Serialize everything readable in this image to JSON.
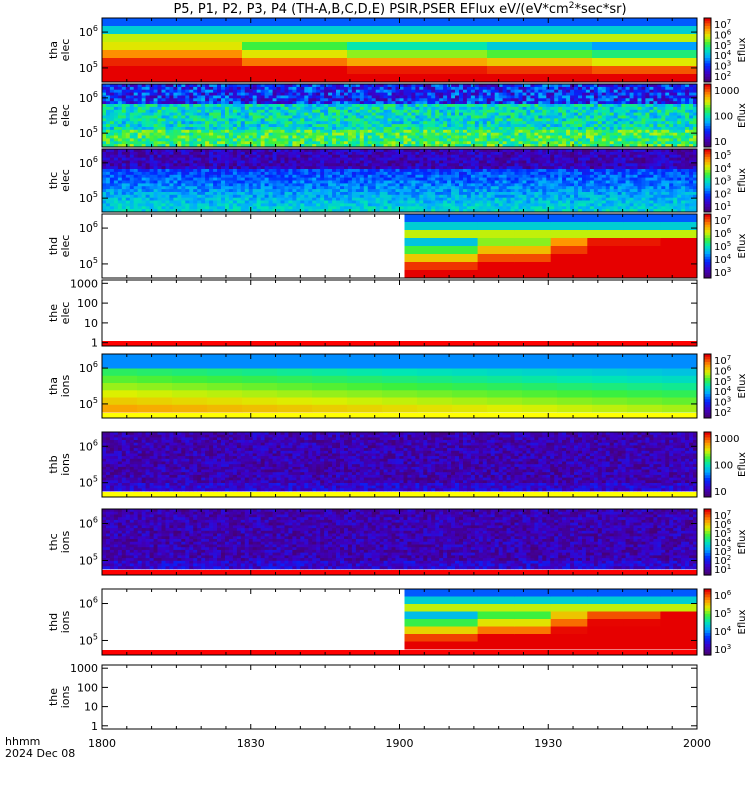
{
  "title": "P5, P1, P2, P3, P4 (TH-A,B,C,D,E) PSIR,PSER EFlux eV/(eV*cm",
  "title_sup": "2",
  "title_end": "*sec*sr)",
  "xaxis": {
    "label_line1": "hhmm",
    "label_line2": "2024 Dec 08",
    "range": [
      0,
      120
    ],
    "ticks": [
      {
        "value": 0,
        "label": "1800"
      },
      {
        "value": 30,
        "label": "1830"
      },
      {
        "value": 60,
        "label": "1900"
      },
      {
        "value": 90,
        "label": "1930"
      },
      {
        "value": 120,
        "label": "2000"
      }
    ]
  },
  "chart_data": [
    {
      "type": "heatmap",
      "name": "tha-elec",
      "ylabel1": "tha",
      "ylabel2": "elec",
      "y_ticks": [
        "10^6",
        "10^5"
      ],
      "cbar_label": "Eflux",
      "cbar_ticks": [
        "10^7",
        "10^6",
        "10^5",
        "10^4",
        "10^3",
        "10^2"
      ],
      "data_start": 0,
      "style": "smooth",
      "hot_frac": 0.55,
      "bands": [
        0.5,
        0.35,
        0.25,
        0.18,
        0.1
      ],
      "bottom_stripe": null
    },
    {
      "type": "heatmap",
      "name": "thb-elec",
      "ylabel1": "thb",
      "ylabel2": "elec",
      "y_ticks": [
        "10^6",
        "10^5"
      ],
      "cbar_label": "Eflux",
      "cbar_ticks": [
        "1000",
        "100",
        "10"
      ],
      "data_start": 0,
      "style": "noisy",
      "hot_frac": 0.2,
      "bands": [
        0.05,
        0.3,
        0.45,
        0.55,
        0.5
      ],
      "bottom_stripe": null
    },
    {
      "type": "heatmap",
      "name": "thc-elec",
      "ylabel1": "thc",
      "ylabel2": "elec",
      "y_ticks": [
        "10^6",
        "10^5"
      ],
      "cbar_label": "Eflux",
      "cbar_ticks": [
        "10^5",
        "10^4",
        "10^3",
        "10^2",
        "10^1"
      ],
      "data_start": 0,
      "style": "noisy",
      "hot_frac": 0.1,
      "bands": [
        0.05,
        0.12,
        0.25,
        0.35,
        0.4
      ],
      "bottom_stripe": null
    },
    {
      "type": "heatmap",
      "name": "thd-elec",
      "ylabel1": "thd",
      "ylabel2": "elec",
      "y_ticks": [
        "10^6",
        "10^5"
      ],
      "cbar_label": "Eflux",
      "cbar_ticks": [
        "10^7",
        "10^6",
        "10^5",
        "10^4",
        "10^3"
      ],
      "data_start": 61,
      "style": "smooth",
      "hot_frac": 0.6,
      "bands": [
        0.15,
        0.4,
        0.6,
        0.75,
        0.9
      ],
      "bottom_stripe": null
    },
    {
      "type": "heatmap",
      "name": "the-elec",
      "ylabel1": "the",
      "ylabel2": "elec",
      "y_ticks": [
        "1000",
        "100",
        "10",
        "1"
      ],
      "cbar_label": "",
      "cbar_ticks": [],
      "data_start": 120,
      "style": "empty",
      "hot_frac": 0,
      "bands": [],
      "bottom_stripe": "red"
    },
    {
      "type": "heatmap",
      "name": "tha-ions",
      "ylabel1": "tha",
      "ylabel2": "ions",
      "y_ticks": [
        "10^6",
        "10^5"
      ],
      "cbar_label": "Eflux",
      "cbar_ticks": [
        "10^7",
        "10^6",
        "10^5",
        "10^4",
        "10^3",
        "10^2"
      ],
      "data_start": 0,
      "style": "smooth",
      "hot_frac": 0.5,
      "bands": [
        0.3,
        0.3,
        0.3,
        0.3,
        0.3
      ],
      "bottom_stripe": "yellow"
    },
    {
      "type": "heatmap",
      "name": "thb-ions",
      "ylabel1": "thb",
      "ylabel2": "ions",
      "y_ticks": [
        "10^6",
        "10^5"
      ],
      "cbar_label": "Eflux",
      "cbar_ticks": [
        "1000",
        "100",
        "10"
      ],
      "data_start": 0,
      "style": "noisy",
      "hot_frac": 0.05,
      "bands": [
        0.1,
        0.1,
        0.1,
        0.1,
        0.1
      ],
      "bottom_stripe": "yellow"
    },
    {
      "type": "heatmap",
      "name": "thc-ions",
      "ylabel1": "thc",
      "ylabel2": "ions",
      "y_ticks": [
        "10^6",
        "10^5"
      ],
      "cbar_label": "Eflux",
      "cbar_ticks": [
        "10^7",
        "10^6",
        "10^5",
        "10^4",
        "10^3",
        "10^2",
        "10^1"
      ],
      "data_start": 0,
      "style": "noisy",
      "hot_frac": 0.05,
      "bands": [
        0.1,
        0.1,
        0.1,
        0.1,
        0.1
      ],
      "bottom_stripe": "red"
    },
    {
      "type": "heatmap",
      "name": "thd-ions",
      "ylabel1": "thd",
      "ylabel2": "ions",
      "y_ticks": [
        "10^6",
        "10^5"
      ],
      "cbar_label": "Eflux",
      "cbar_ticks": [
        "10^6",
        "10^5",
        "10^4",
        "10^3"
      ],
      "data_start": 61,
      "style": "smooth",
      "hot_frac": 0.55,
      "bands": [
        0.15,
        0.35,
        0.55,
        0.7,
        0.85
      ],
      "bottom_stripe": "red"
    },
    {
      "type": "heatmap",
      "name": "the-ions",
      "ylabel1": "the",
      "ylabel2": "ions",
      "y_ticks": [
        "1000",
        "100",
        "10",
        "1"
      ],
      "cbar_label": "",
      "cbar_ticks": [],
      "data_start": 120,
      "style": "empty",
      "hot_frac": 0,
      "bands": [],
      "bottom_stripe": null
    }
  ]
}
